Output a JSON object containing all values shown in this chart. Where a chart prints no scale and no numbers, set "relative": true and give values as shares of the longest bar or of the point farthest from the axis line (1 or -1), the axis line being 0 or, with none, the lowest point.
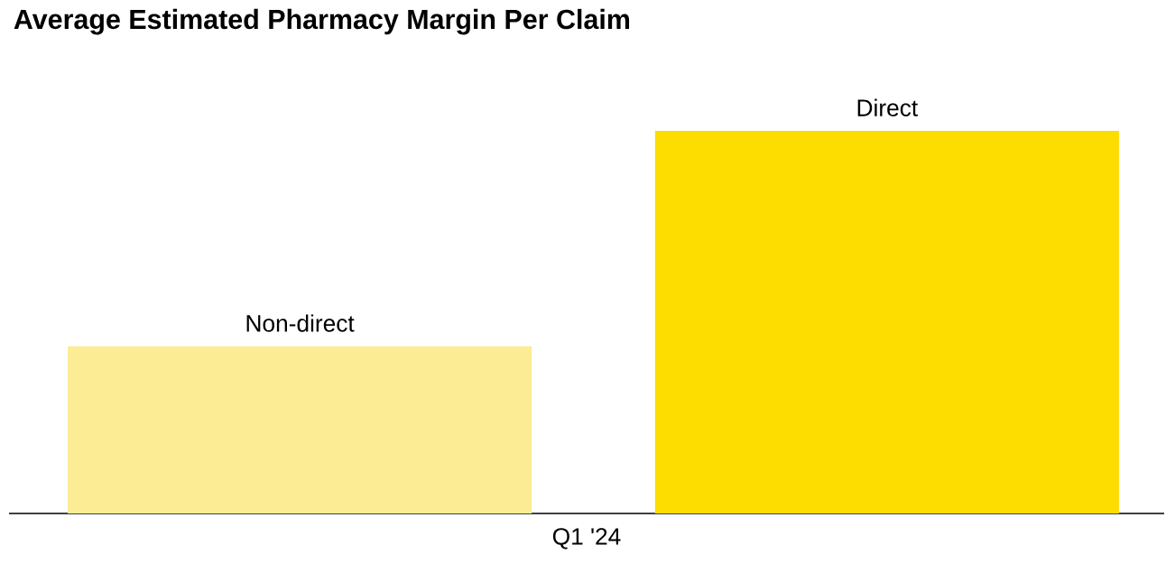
{
  "chart_data": {
    "type": "bar",
    "title": "Average Estimated Pharmacy Margin Per Claim",
    "relative": true,
    "xlabel": "Q1 '24",
    "categories": [
      "Non-direct",
      "Direct"
    ],
    "values": [
      0.437,
      1
    ],
    "colors": [
      "#fcec94",
      "#fddc00"
    ]
  }
}
